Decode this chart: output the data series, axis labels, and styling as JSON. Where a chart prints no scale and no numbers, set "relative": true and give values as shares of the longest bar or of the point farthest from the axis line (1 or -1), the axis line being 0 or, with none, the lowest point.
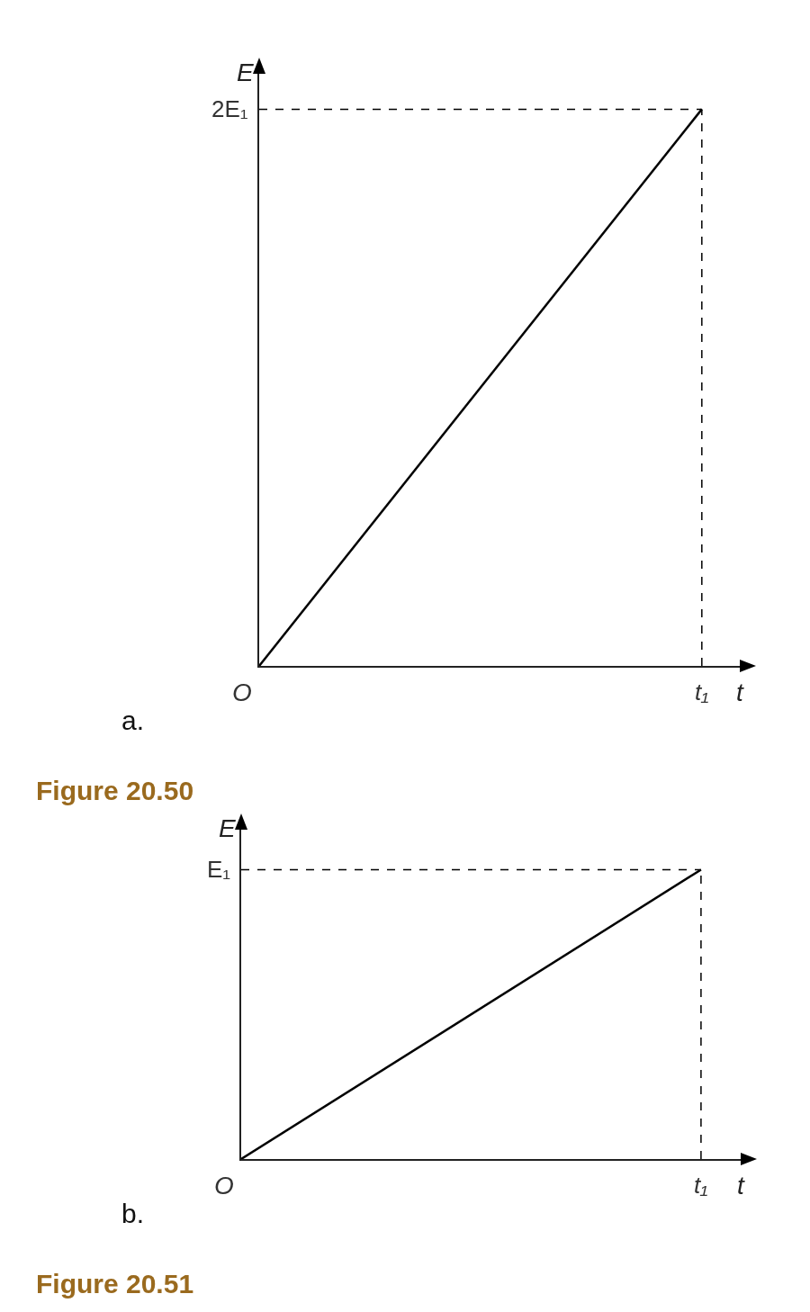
{
  "chart_data": [
    {
      "type": "line",
      "relative": true,
      "xlabel": "t",
      "ylabel": "E",
      "categories": [
        null,
        null
      ],
      "series": [
        {
          "color": "#000000",
          "values": [
            0,
            1
          ]
        }
      ],
      "grid": false,
      "marker": "none",
      "line_style": "solid",
      "ref_lines": [
        {
          "axis": "y",
          "value": 1,
          "color": "#000000",
          "line_style": "dashed"
        }
      ],
      "annotations": [
        "2E₁",
        "O",
        "t₁",
        "a.",
        "Figure 20.50"
      ]
    },
    {
      "type": "line",
      "relative": true,
      "xlabel": "t",
      "ylabel": "E",
      "categories": [
        null,
        null
      ],
      "series": [
        {
          "color": "#000000",
          "values": [
            0,
            1
          ]
        }
      ],
      "grid": false,
      "marker": "none",
      "line_style": "solid",
      "ref_lines": [
        {
          "axis": "y",
          "value": 1,
          "color": "#000000",
          "line_style": "dashed"
        }
      ],
      "annotations": [
        "E₁",
        "O",
        "t₁",
        "b.",
        "Figure 20.51"
      ]
    }
  ]
}
